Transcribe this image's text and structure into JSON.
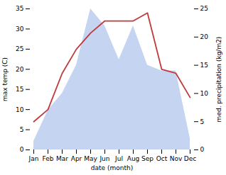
{
  "chart_data": {
    "type": "line",
    "categories": [
      "Jan",
      "Feb",
      "Mar",
      "Apr",
      "May",
      "Jun",
      "Jul",
      "Aug",
      "Sep",
      "Oct",
      "Nov",
      "Dec"
    ],
    "xlabel": "date (month)",
    "ylabel": "max temp (C)",
    "y2label": "med. precipitation (kg/m2)",
    "ylim": [
      0,
      35
    ],
    "yticks": [
      0,
      5,
      10,
      15,
      20,
      25,
      30,
      35
    ],
    "y2lim": [
      0,
      25
    ],
    "y2ticks": [
      0,
      5,
      10,
      15,
      20,
      25
    ],
    "series": [
      {
        "type": "area",
        "axis": "y2",
        "color": "#c5d4f0",
        "values": [
          1.5,
          7,
          10,
          15,
          25,
          22,
          16,
          22,
          15,
          14,
          14,
          2
        ]
      },
      {
        "type": "line",
        "color": "#c0393b",
        "values": [
          7,
          10,
          19,
          25,
          29,
          32,
          32,
          32,
          34,
          20,
          19,
          13
        ]
      }
    ]
  }
}
